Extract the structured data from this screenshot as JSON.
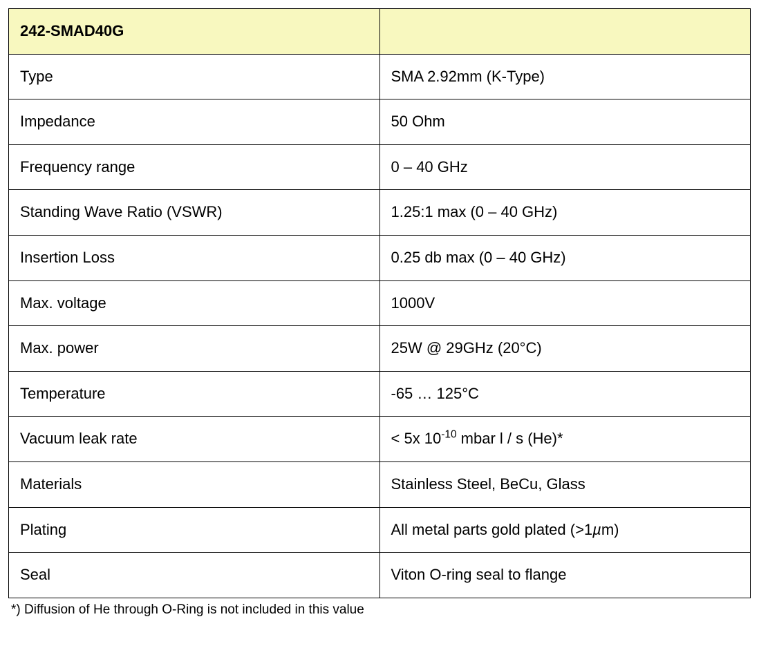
{
  "table": {
    "header_bg": "#f8f8bf",
    "border_color": "#000000",
    "font_family": "Century Gothic",
    "header_label": "242-SMAD40G",
    "header_value": "",
    "rows": [
      {
        "label": "Type",
        "value": "SMA 2.92mm (K-Type)"
      },
      {
        "label": "Impedance",
        "value": "50 Ohm"
      },
      {
        "label": "Frequency range",
        "value": "0 – 40 GHz"
      },
      {
        "label": "Standing Wave Ratio (VSWR)",
        "value": "1.25:1 max (0 – 40 GHz)"
      },
      {
        "label": "Insertion Loss",
        "value": " 0.25 db max (0 – 40 GHz)"
      },
      {
        "label": "Max. voltage",
        "value": "1000V"
      },
      {
        "label": "Max. power",
        "value": "25W @ 29GHz (20°C)"
      },
      {
        "label": "Temperature",
        "value": "-65 … 125°C"
      },
      {
        "label": "Vacuum leak rate",
        "value_html": "< 5x 10<sup>-10</sup> mbar l / s (He)*"
      },
      {
        "label": "Materials",
        "value": "Stainless Steel, BeCu, Glass"
      },
      {
        "label": "Plating",
        "value_html": "All metal parts gold plated (>1<span class=\"mu\">µ</span>m)"
      },
      {
        "label": "Seal",
        "value": "Viton O-ring seal to flange"
      }
    ]
  },
  "footnote": "*) Diffusion of He through O-Ring is not included in this value"
}
